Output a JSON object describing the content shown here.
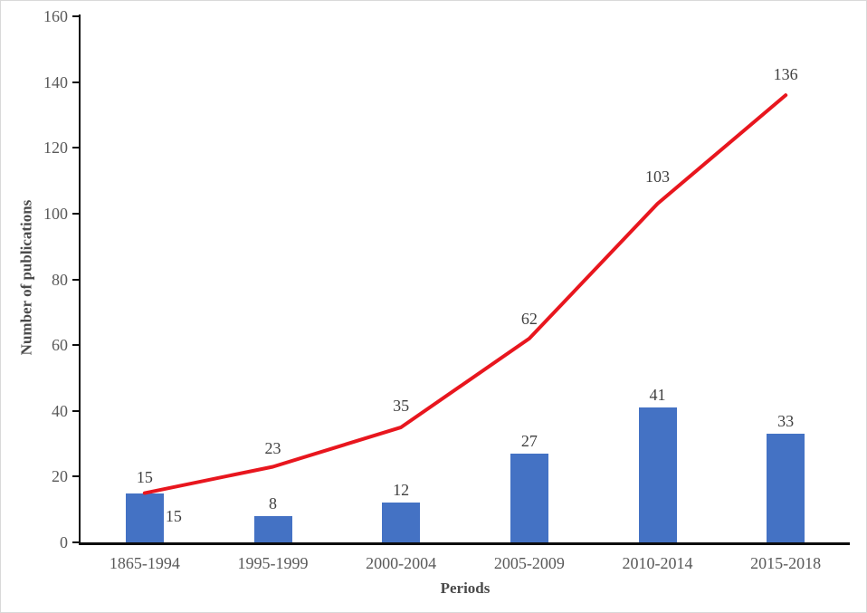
{
  "chart_data": {
    "type": "combo",
    "categories": [
      "1865-1994",
      "1995-1999",
      "2000-2004",
      "2005-2009",
      "2010-2014",
      "2015-2018"
    ],
    "series": [
      {
        "id": "publications-bars",
        "type": "bar",
        "values": [
          15,
          8,
          12,
          27,
          41,
          33
        ],
        "data_labels": [
          "15",
          "8",
          "12",
          "27",
          "41",
          "33"
        ],
        "color": "#4472c4"
      },
      {
        "id": "cumulative-line",
        "type": "line",
        "values": [
          15,
          23,
          35,
          62,
          103,
          136
        ],
        "data_labels": [
          "15",
          "23",
          "35",
          "62",
          "103",
          "136"
        ],
        "color": "#e8161e"
      }
    ],
    "xlabel": "Periods",
    "ylabel": "Number of publications",
    "ylim": [
      0,
      160
    ],
    "ytick_step": 20,
    "yticks": [
      "0",
      "20",
      "40",
      "60",
      "80",
      "100",
      "120",
      "140",
      "160"
    ],
    "grid": false,
    "legend": "none",
    "axis_color": "#0d0d0d",
    "tick_label_color": "#595959",
    "data_label_color": "#404040"
  }
}
